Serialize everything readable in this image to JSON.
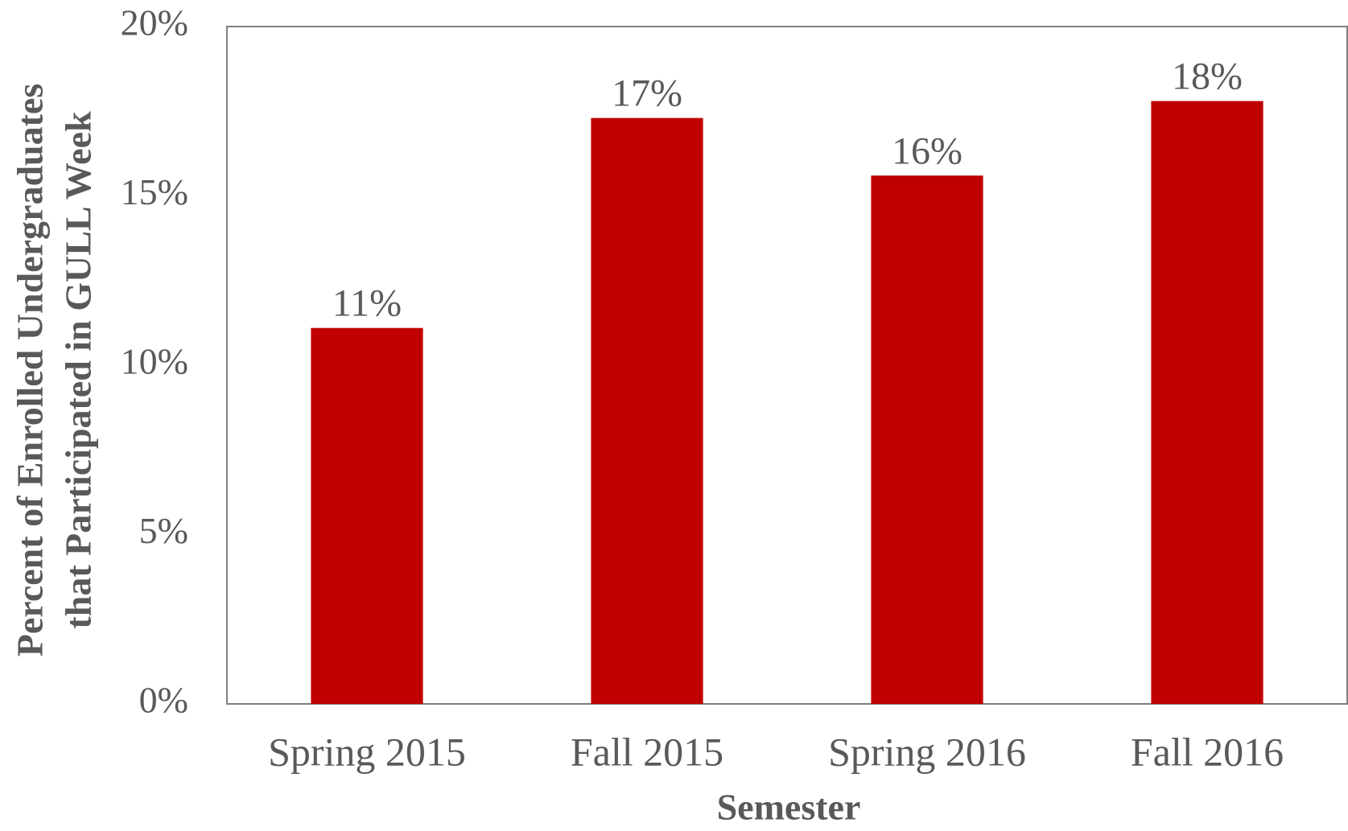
{
  "chart_data": {
    "type": "bar",
    "xlabel": "Semester",
    "ylabel": [
      "Percent of Enrolled Undergraduates",
      "that Participated in GULL Week"
    ],
    "categories": [
      "Spring 2015",
      "Fall 2015",
      "Spring 2016",
      "Fall 2016"
    ],
    "values": [
      11.1,
      17.3,
      15.6,
      17.8
    ],
    "value_labels": [
      "11%",
      "17%",
      "16%",
      "18%"
    ],
    "color": "#c00000",
    "ylim": [
      0,
      20
    ],
    "yticks": [
      {
        "value": 0,
        "label": "0%"
      },
      {
        "value": 5,
        "label": "5%"
      },
      {
        "value": 10,
        "label": "10%"
      },
      {
        "value": 15,
        "label": "15%"
      },
      {
        "value": 20,
        "label": "20%"
      }
    ],
    "grid": false
  }
}
